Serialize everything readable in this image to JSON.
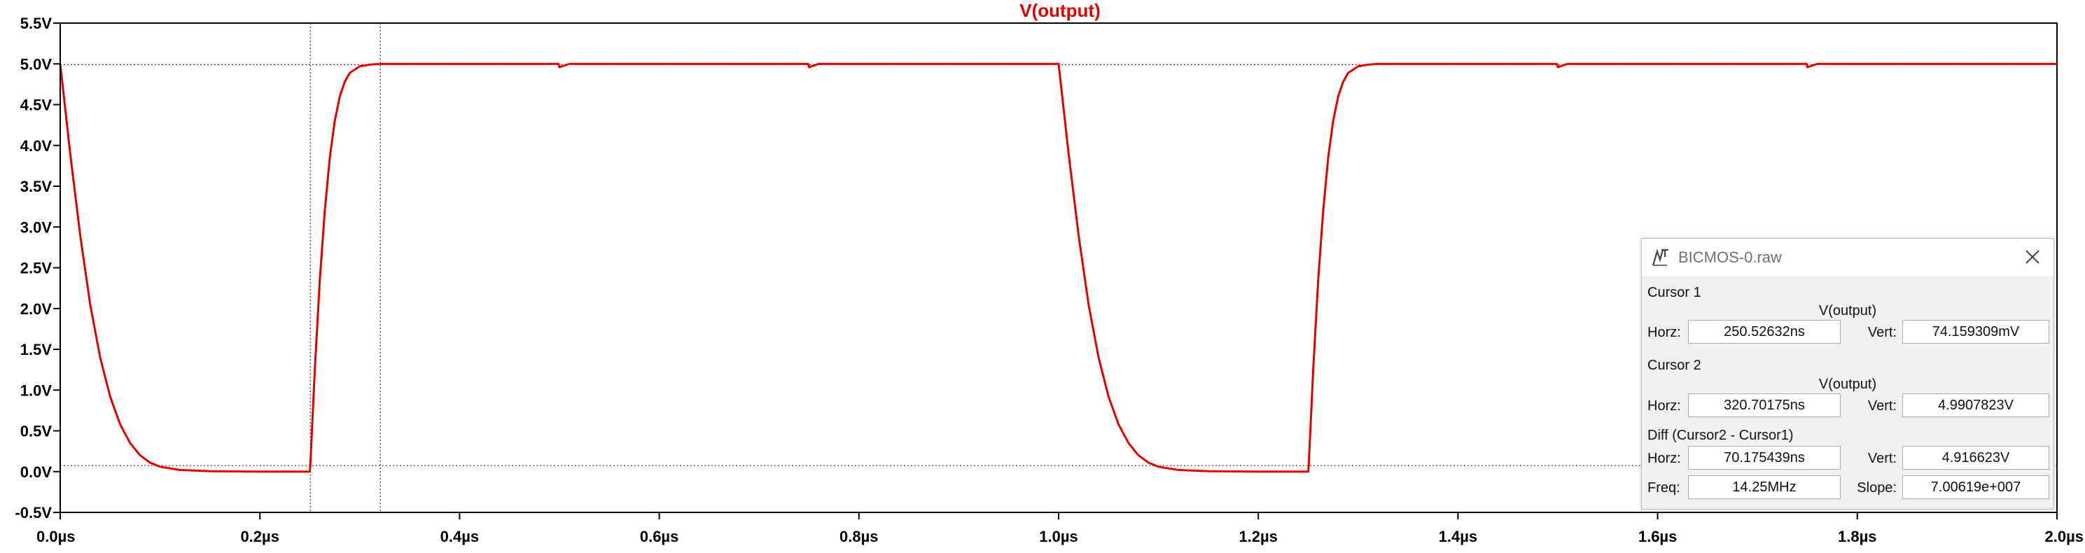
{
  "chart_data": {
    "type": "line",
    "title": "V(output)",
    "xlabel": "",
    "ylabel": "",
    "x_unit": "µs",
    "xlim": [
      0.0,
      2.0
    ],
    "ylim": [
      -0.5,
      5.5
    ],
    "x_ticks": [
      0.0,
      0.2,
      0.4,
      0.6,
      0.8,
      1.0,
      1.2,
      1.4,
      1.6,
      1.8,
      2.0
    ],
    "x_tick_labels": [
      "0.0µs",
      "0.2µs",
      "0.4µs",
      "0.6µs",
      "0.8µs",
      "1.0µs",
      "1.2µs",
      "1.4µs",
      "1.6µs",
      "1.8µs",
      "2.0µs"
    ],
    "y_ticks": [
      -0.5,
      0.0,
      0.5,
      1.0,
      1.5,
      2.0,
      2.5,
      3.0,
      3.5,
      4.0,
      4.5,
      5.0,
      5.5
    ],
    "y_tick_labels": [
      "-0.5V",
      "0.0V",
      "0.5V",
      "1.0V",
      "1.5V",
      "2.0V",
      "2.5V",
      "3.0V",
      "3.5V",
      "4.0V",
      "4.5V",
      "5.0V",
      "5.5V"
    ],
    "grid": false,
    "series": [
      {
        "name": "V(output)",
        "color": "#e00000",
        "x": [
          0.0,
          0.01,
          0.02,
          0.03,
          0.04,
          0.05,
          0.06,
          0.07,
          0.08,
          0.09,
          0.1,
          0.12,
          0.15,
          0.2,
          0.25,
          0.2505,
          0.255,
          0.26,
          0.265,
          0.27,
          0.275,
          0.28,
          0.285,
          0.29,
          0.3,
          0.31,
          0.32,
          0.35,
          0.4,
          0.499,
          0.5,
          0.505,
          0.51,
          0.749,
          0.75,
          0.755,
          0.76,
          1.0,
          1.01,
          1.02,
          1.03,
          1.04,
          1.05,
          1.06,
          1.07,
          1.08,
          1.09,
          1.1,
          1.12,
          1.15,
          1.2,
          1.25,
          1.2505,
          1.255,
          1.26,
          1.265,
          1.27,
          1.275,
          1.28,
          1.285,
          1.29,
          1.3,
          1.31,
          1.32,
          1.35,
          1.4,
          1.499,
          1.5,
          1.505,
          1.51,
          1.749,
          1.75,
          1.755,
          1.76,
          2.0
        ],
        "y": [
          5.0,
          3.9,
          2.9,
          2.05,
          1.4,
          0.92,
          0.58,
          0.35,
          0.2,
          0.11,
          0.06,
          0.02,
          0.005,
          0.0,
          0.0,
          0.074,
          1.25,
          2.35,
          3.2,
          3.85,
          4.3,
          4.6,
          4.78,
          4.89,
          4.97,
          4.99,
          5.0,
          5.0,
          5.0,
          5.0,
          4.96,
          4.98,
          5.0,
          5.0,
          4.96,
          4.98,
          5.0,
          5.0,
          3.9,
          2.9,
          2.05,
          1.4,
          0.92,
          0.58,
          0.35,
          0.2,
          0.11,
          0.06,
          0.02,
          0.005,
          0.0,
          0.0,
          0.074,
          1.25,
          2.35,
          3.2,
          3.85,
          4.3,
          4.6,
          4.78,
          4.89,
          4.97,
          4.99,
          5.0,
          5.0,
          5.0,
          5.0,
          4.96,
          4.98,
          5.0,
          5.0,
          4.96,
          4.98,
          5.0,
          5.0
        ]
      }
    ],
    "reference_lines": {
      "vertical_cursors_us": [
        0.25052632,
        0.32070175
      ],
      "horizontal_cursors_v": [
        0.074159309,
        4.9907823
      ]
    }
  },
  "cursor_window": {
    "title": "BICMOS-0.raw",
    "app_icon": "ltspice-icon",
    "close_icon": "close-icon",
    "cursor1": {
      "heading": "Cursor 1",
      "series": "V(output)",
      "horz_label": "Horz:",
      "horz_value": "250.52632ns",
      "vert_label": "Vert:",
      "vert_value": "74.159309mV"
    },
    "cursor2": {
      "heading": "Cursor 2",
      "series": "V(output)",
      "horz_label": "Horz:",
      "horz_value": "320.70175ns",
      "vert_label": "Vert:",
      "vert_value": "4.9907823V"
    },
    "diff": {
      "heading": "Diff (Cursor2 - Cursor1)",
      "horz_label": "Horz:",
      "horz_value": "70.175439ns",
      "vert_label": "Vert:",
      "vert_value": "4.916623V",
      "freq_label": "Freq:",
      "freq_value": "14.25MHz",
      "slope_label": "Slope:",
      "slope_value": "7.00619e+007"
    }
  }
}
